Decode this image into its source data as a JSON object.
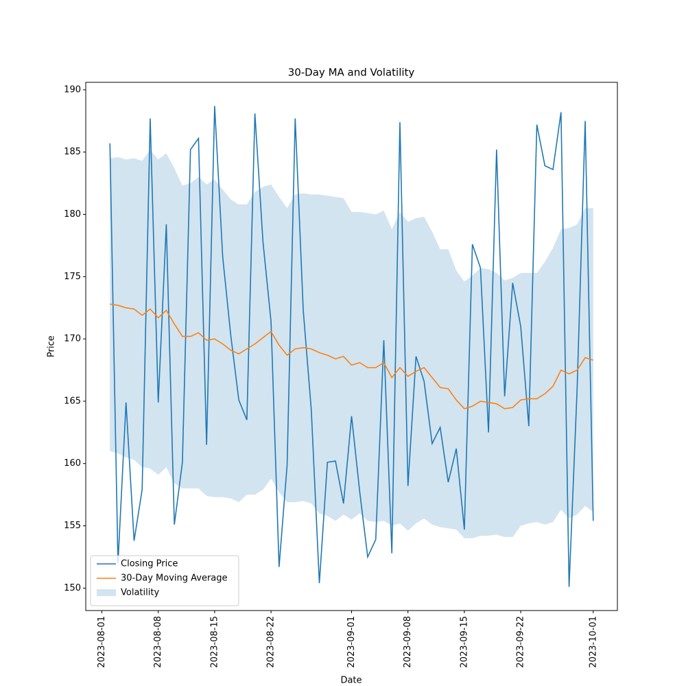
{
  "chart_data": {
    "type": "line",
    "title": "30-Day MA and Volatility",
    "xlabel": "Date",
    "ylabel": "Price",
    "x": [
      "2023-08-02",
      "2023-08-03",
      "2023-08-04",
      "2023-08-05",
      "2023-08-06",
      "2023-08-07",
      "2023-08-08",
      "2023-08-09",
      "2023-08-10",
      "2023-08-11",
      "2023-08-12",
      "2023-08-13",
      "2023-08-14",
      "2023-08-15",
      "2023-08-16",
      "2023-08-17",
      "2023-08-18",
      "2023-08-19",
      "2023-08-20",
      "2023-08-21",
      "2023-08-22",
      "2023-08-23",
      "2023-08-24",
      "2023-08-25",
      "2023-08-26",
      "2023-08-27",
      "2023-08-28",
      "2023-08-29",
      "2023-08-30",
      "2023-08-31",
      "2023-09-01",
      "2023-09-02",
      "2023-09-03",
      "2023-09-04",
      "2023-09-05",
      "2023-09-06",
      "2023-09-07",
      "2023-09-08",
      "2023-09-09",
      "2023-09-10",
      "2023-09-11",
      "2023-09-12",
      "2023-09-13",
      "2023-09-14",
      "2023-09-15",
      "2023-09-16",
      "2023-09-17",
      "2023-09-18",
      "2023-09-19",
      "2023-09-20",
      "2023-09-21",
      "2023-09-22",
      "2023-09-23",
      "2023-09-24",
      "2023-09-25",
      "2023-09-26",
      "2023-09-27",
      "2023-09-28",
      "2023-09-29",
      "2023-09-30",
      "2023-10-01"
    ],
    "series": [
      {
        "name": "Closing Price",
        "color": "#1f77b4",
        "values": [
          185.7,
          152.0,
          164.9,
          153.8,
          157.9,
          187.7,
          164.9,
          179.2,
          155.1,
          160.1,
          185.2,
          186.1,
          161.5,
          188.7,
          176.6,
          170.3,
          165.1,
          163.5,
          188.1,
          177.8,
          171.4,
          151.7,
          159.9,
          187.7,
          172.3,
          164.3,
          150.4,
          160.1,
          160.2,
          156.8,
          163.8,
          157.8,
          152.5,
          153.9,
          169.9,
          152.8,
          187.4,
          158.2,
          168.6,
          166.6,
          161.6,
          162.9,
          158.5,
          161.2,
          154.7,
          177.6,
          175.7,
          162.5,
          185.2,
          165.4,
          174.5,
          171.0,
          163.0,
          187.2,
          183.9,
          183.6,
          188.2,
          150.1,
          166.0,
          187.5,
          155.4
        ]
      },
      {
        "name": "30-Day Moving Average",
        "color": "#ff7f0e",
        "values": [
          172.8,
          172.7,
          172.5,
          172.4,
          171.9,
          172.4,
          171.7,
          172.3,
          171.2,
          170.2,
          170.2,
          170.5,
          169.9,
          170.0,
          169.6,
          169.1,
          168.8,
          169.2,
          169.6,
          170.1,
          170.6,
          169.5,
          168.7,
          169.2,
          169.3,
          169.2,
          168.9,
          168.7,
          168.4,
          168.6,
          167.9,
          168.1,
          167.7,
          167.7,
          168.1,
          166.9,
          167.7,
          167.0,
          167.4,
          167.7,
          166.9,
          166.1,
          166.0,
          165.1,
          164.4,
          164.6,
          165.0,
          164.9,
          164.8,
          164.4,
          164.5,
          165.1,
          165.2,
          165.2,
          165.6,
          166.2,
          167.5,
          167.2,
          167.5,
          168.5,
          168.3
        ]
      },
      {
        "name": "Volatility",
        "color": "#1f77b4",
        "opacity": 0.2,
        "upper": [
          184.5,
          184.6,
          184.4,
          184.5,
          184.3,
          185.2,
          184.4,
          184.9,
          183.7,
          182.3,
          182.5,
          183.0,
          182.4,
          182.8,
          182.0,
          181.2,
          180.8,
          180.8,
          181.8,
          182.2,
          182.4,
          181.4,
          180.5,
          181.6,
          181.7,
          181.6,
          181.6,
          181.5,
          181.4,
          181.3,
          180.2,
          180.2,
          180.1,
          180.0,
          180.3,
          178.8,
          180.2,
          179.4,
          179.7,
          179.8,
          178.6,
          177.2,
          177.2,
          175.5,
          174.6,
          175.1,
          175.7,
          175.6,
          175.3,
          174.7,
          174.9,
          175.3,
          175.3,
          175.3,
          176.2,
          177.3,
          178.8,
          178.9,
          179.2,
          180.5,
          180.5
        ],
        "lower": [
          161.0,
          160.8,
          160.5,
          160.3,
          159.7,
          159.6,
          159.1,
          159.7,
          158.4,
          158.0,
          158.0,
          158.0,
          157.4,
          157.3,
          157.3,
          157.2,
          156.9,
          157.5,
          157.5,
          157.9,
          158.8,
          157.7,
          156.9,
          156.9,
          157.0,
          156.8,
          156.0,
          155.8,
          155.4,
          155.9,
          155.5,
          156.0,
          155.4,
          155.3,
          155.4,
          155.0,
          155.2,
          154.6,
          155.2,
          155.6,
          155.1,
          154.9,
          154.8,
          154.7,
          154.0,
          154.0,
          154.2,
          154.2,
          154.3,
          154.1,
          154.1,
          155.0,
          155.2,
          155.3,
          155.1,
          155.3,
          156.3,
          155.6,
          155.9,
          156.6,
          156.1
        ]
      }
    ],
    "xlim": [
      "2023-07-30",
      "2023-10-04"
    ],
    "xticks": [
      "2023-08-01",
      "2023-08-08",
      "2023-08-15",
      "2023-08-22",
      "2023-09-01",
      "2023-09-08",
      "2023-09-15",
      "2023-09-22",
      "2023-10-01"
    ],
    "ylim": [
      148.2,
      190.6
    ],
    "yticks": [
      150,
      155,
      160,
      165,
      170,
      175,
      180,
      185,
      190
    ],
    "legend": "lower left",
    "grid": false
  }
}
